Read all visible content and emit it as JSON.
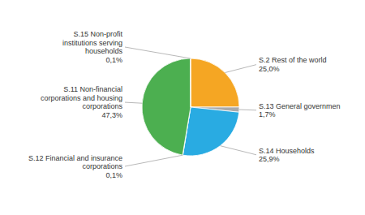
{
  "chart_data": {
    "type": "pie",
    "categories": [
      "S.2 Rest of the world",
      "S.13 General governmen",
      "S.14 Households",
      "S.12 Financial and insurance\ncorporations",
      "S.11 Non-financial\ncorporations and housing\ncorporations",
      "S.15 Non-profit\ninstitutions serving\nhouseholds"
    ],
    "values": [
      25.0,
      1.7,
      25.9,
      0.1,
      47.3,
      0.1
    ],
    "value_labels": [
      "25,0%",
      "1,7%",
      "25,9%",
      "0,1%",
      "47,3%",
      "0,1%"
    ],
    "colors": [
      "#F5A623",
      "#AAAAAA",
      "#29ABE2",
      "#29ABE2",
      "#4CAF50",
      "#4CAF50"
    ],
    "data_labels": true
  }
}
